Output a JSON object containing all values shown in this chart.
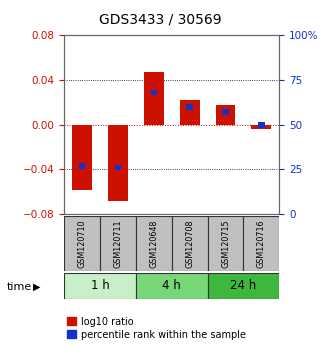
{
  "title": "GDS3433 / 30569",
  "samples": [
    "GSM120710",
    "GSM120711",
    "GSM120648",
    "GSM120708",
    "GSM120715",
    "GSM120716"
  ],
  "log10_ratio": [
    -0.058,
    -0.068,
    0.047,
    0.022,
    0.018,
    -0.004
  ],
  "percentile_rank": [
    27,
    26,
    68,
    60,
    57,
    50
  ],
  "time_groups": [
    {
      "label": "1 h",
      "indices": [
        0,
        1
      ],
      "color": "#c8f0c8"
    },
    {
      "label": "4 h",
      "indices": [
        2,
        3
      ],
      "color": "#78d878"
    },
    {
      "label": "24 h",
      "indices": [
        4,
        5
      ],
      "color": "#3db83d"
    }
  ],
  "ylim_left": [
    -0.08,
    0.08
  ],
  "ylim_right": [
    0,
    100
  ],
  "yticks_left": [
    -0.08,
    -0.04,
    0,
    0.04,
    0.08
  ],
  "yticks_right": [
    0,
    25,
    50,
    75,
    100
  ],
  "red_color": "#cc1100",
  "blue_color": "#1133cc",
  "grid_color": "#000000",
  "zero_line_color": "#cc0000",
  "bg_plot": "#ffffff",
  "bg_fig": "#ffffff",
  "tick_area_color": "#c0c0c0",
  "legend_red": "log10 ratio",
  "legend_blue": "percentile rank within the sample",
  "red_bar_width": 0.55,
  "blue_bar_width": 0.18,
  "blue_bar_height": 0.005
}
